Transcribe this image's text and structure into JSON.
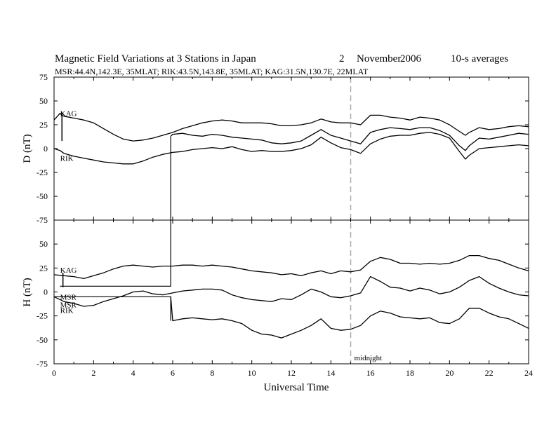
{
  "chart_data": {
    "type": "line",
    "title": "Magnetic Field Variations at 3 Stations in Japan",
    "date_day": "2",
    "date_month": "November",
    "date_year": "2006",
    "averaging": "10-s averages",
    "subtitle": "MSR:44.4N,142.3E, 35MLAT;  RIK:43.5N,143.8E, 35MLAT;  KAG:31.5N,130.7E, 22MLAT",
    "xlabel": "Universal Time",
    "xlim": [
      0,
      24
    ],
    "x_ticks": [
      "0",
      "2",
      "4",
      "6",
      "8",
      "10",
      "12",
      "14",
      "16",
      "18",
      "20",
      "22",
      "24"
    ],
    "midnight_marker": {
      "x": 15,
      "label": "midnight",
      "color": "#aaaaaa"
    },
    "panels": [
      {
        "ylabel": "D (nT)",
        "ylim": [
          -75,
          75
        ],
        "y_ticks": [
          "75",
          "50",
          "25",
          "0",
          "-25",
          "-50",
          "-75"
        ],
        "series": [
          {
            "name": "KAG",
            "x": [
              0.0,
              0.3,
              0.4,
              0.5,
              1,
              1.5,
              2,
              2.5,
              3,
              3.5,
              4,
              4.5,
              5,
              5.5,
              6,
              6.5,
              7,
              7.5,
              8,
              8.5,
              9,
              9.5,
              10,
              10.5,
              11,
              11.5,
              12,
              12.5,
              13,
              13.5,
              14,
              14.5,
              15,
              15.5,
              16,
              16.5,
              17,
              17.5,
              18,
              18.5,
              19,
              19.5,
              20,
              20.5,
              20.8,
              21,
              21.5,
              22,
              22.5,
              23,
              23.5,
              24
            ],
            "y": [
              30,
              37,
              35,
              34,
              32,
              30,
              27,
              21,
              15,
              10,
              8,
              9,
              11,
              14,
              17,
              21,
              24,
              27,
              29,
              30,
              29,
              27,
              27,
              27,
              26,
              24,
              24,
              25,
              27,
              31,
              28,
              27,
              27,
              25,
              35,
              35,
              33,
              32,
              30,
              33,
              32,
              30,
              25,
              18,
              14,
              17,
              22,
              20,
              21,
              23,
              24,
              23
            ]
          },
          {
            "name": "MSR",
            "x": [
              5.9,
              6.0,
              6.5,
              7,
              7.5,
              8,
              8.5,
              9,
              9.5,
              10,
              10.5,
              11,
              11.5,
              12,
              12.5,
              13,
              13.5,
              14,
              14.5,
              15,
              15.5,
              16,
              16.5,
              17,
              17.5,
              18,
              18.5,
              19,
              19.5,
              20,
              20.5,
              20.8,
              21,
              21.5,
              22,
              22.5,
              23,
              23.5,
              24
            ],
            "y": [
              13,
              15,
              16,
              14,
              13,
              15,
              14,
              12,
              11,
              10,
              9,
              6,
              5,
              6,
              8,
              14,
              20,
              14,
              11,
              8,
              5,
              17,
              20,
              22,
              21,
              20,
              22,
              22,
              19,
              14,
              3,
              -2,
              3,
              11,
              10,
              12,
              14,
              16,
              15
            ]
          },
          {
            "name": "RIK",
            "x": [
              0.0,
              0.3,
              0.5,
              1,
              1.5,
              2,
              2.5,
              3,
              3.5,
              4,
              4.5,
              5,
              5.5,
              6,
              6.5,
              7,
              7.5,
              8,
              8.5,
              9,
              9.5,
              10,
              10.5,
              11,
              11.5,
              12,
              12.5,
              13,
              13.5,
              14,
              14.5,
              15,
              15.5,
              16,
              16.5,
              17,
              17.5,
              18,
              18.5,
              19,
              19.5,
              20,
              20.5,
              20.8,
              21,
              21.5,
              22,
              22.5,
              23,
              23.5,
              24
            ],
            "y": [
              0,
              -2,
              -5,
              -8,
              -10,
              -12,
              -14,
              -15,
              -16,
              -16,
              -13,
              -9,
              -6,
              -4,
              -3,
              -1,
              0,
              1,
              0,
              2,
              -1,
              -3,
              -2,
              -3,
              -3,
              -2,
              0,
              4,
              12,
              6,
              1,
              -1,
              -5,
              5,
              10,
              13,
              14,
              14,
              16,
              17,
              15,
              11,
              -3,
              -11,
              -7,
              0,
              1,
              2,
              3,
              4,
              3
            ]
          }
        ],
        "labels": [
          {
            "text": "KAG",
            "x": 0.2,
            "y": 37
          },
          {
            "text": "RIK",
            "x": 0.2,
            "y": -10
          }
        ]
      },
      {
        "ylabel": "H (nT)",
        "ylim": [
          -75,
          75
        ],
        "y_ticks": [
          "75",
          "50",
          "25",
          "0",
          "-25",
          "-50",
          "-75"
        ],
        "series": [
          {
            "name": "KAG",
            "x": [
              0.0,
              0.5,
              1,
              1.5,
              2,
              2.5,
              3,
              3.5,
              4,
              4.5,
              5,
              5.5,
              6,
              6.5,
              7,
              7.5,
              8,
              8.5,
              9,
              9.5,
              10,
              10.5,
              11,
              11.5,
              12,
              12.5,
              13,
              13.5,
              14,
              14.5,
              15,
              15.5,
              16,
              16.5,
              17,
              17.5,
              18,
              18.5,
              19,
              19.5,
              20,
              20.5,
              21,
              21.5,
              22,
              22.5,
              23,
              23.5,
              24
            ],
            "y": [
              18,
              17,
              16,
              14,
              17,
              20,
              24,
              27,
              28,
              27,
              26,
              27,
              27,
              28,
              28,
              27,
              28,
              27,
              26,
              24,
              22,
              21,
              20,
              18,
              19,
              17,
              20,
              22,
              19,
              22,
              21,
              23,
              32,
              36,
              34,
              30,
              30,
              29,
              30,
              29,
              30,
              33,
              38,
              38,
              35,
              33,
              29,
              25,
              22
            ]
          },
          {
            "name": "MSR",
            "x": [
              0.0,
              0.3,
              0.5,
              1,
              1.5,
              2,
              2.5,
              3,
              3.5,
              4,
              4.5,
              5,
              5.5,
              6,
              6.5,
              7,
              7.5,
              8,
              8.5,
              9,
              9.5,
              10,
              10.5,
              11,
              11.5,
              12,
              12.5,
              13,
              13.5,
              14,
              14.5,
              15,
              15.5,
              16,
              16.5,
              17,
              17.5,
              18,
              18.5,
              19,
              19.5,
              20,
              20.5,
              21,
              21.5,
              22,
              22.5,
              23,
              23.5,
              24
            ],
            "y": [
              -5,
              -8,
              -10,
              -12,
              -15,
              -14,
              -10,
              -7,
              -4,
              0,
              1,
              -2,
              -3,
              -1,
              1,
              2,
              3,
              3,
              2,
              -3,
              -6,
              -8,
              -9,
              -10,
              -7,
              -8,
              -3,
              3,
              0,
              -5,
              -6,
              -4,
              -1,
              16,
              11,
              5,
              4,
              1,
              4,
              2,
              -2,
              0,
              5,
              12,
              16,
              9,
              4,
              0,
              -3,
              -4
            ]
          },
          {
            "name": "RIK",
            "x": [
              5.9,
              6.0,
              6.5,
              7,
              7.5,
              8,
              8.5,
              9,
              9.5,
              10,
              10.5,
              11,
              11.5,
              12,
              12.5,
              13,
              13.5,
              14,
              14.5,
              15,
              15.5,
              16,
              16.5,
              17,
              17.5,
              18,
              18.5,
              19,
              19.5,
              20,
              20.5,
              21,
              21.5,
              22,
              22.5,
              23,
              23.5,
              24
            ],
            "y": [
              -5,
              -30,
              -28,
              -27,
              -28,
              -29,
              -28,
              -30,
              -33,
              -40,
              -44,
              -45,
              -48,
              -44,
              -40,
              -35,
              -28,
              -38,
              -40,
              -39,
              -35,
              -25,
              -20,
              -22,
              -26,
              -27,
              -28,
              -27,
              -32,
              -33,
              -28,
              -17,
              -17,
              -22,
              -26,
              -28,
              -33,
              -38
            ]
          }
        ],
        "labels": [
          {
            "text": "KAG",
            "x": 0.2,
            "y": 23
          },
          {
            "text": "MSR",
            "x": 0.2,
            "y": -5
          },
          {
            "text": "MSR",
            "x": 0.2,
            "y": -13
          },
          {
            "text": "RIK",
            "x": 0.2,
            "y": -19
          }
        ]
      }
    ],
    "notes": "Square-wave artefact traces from t=0 to about 5.9 UT connect to the MSR D curve and RIK H curve"
  }
}
